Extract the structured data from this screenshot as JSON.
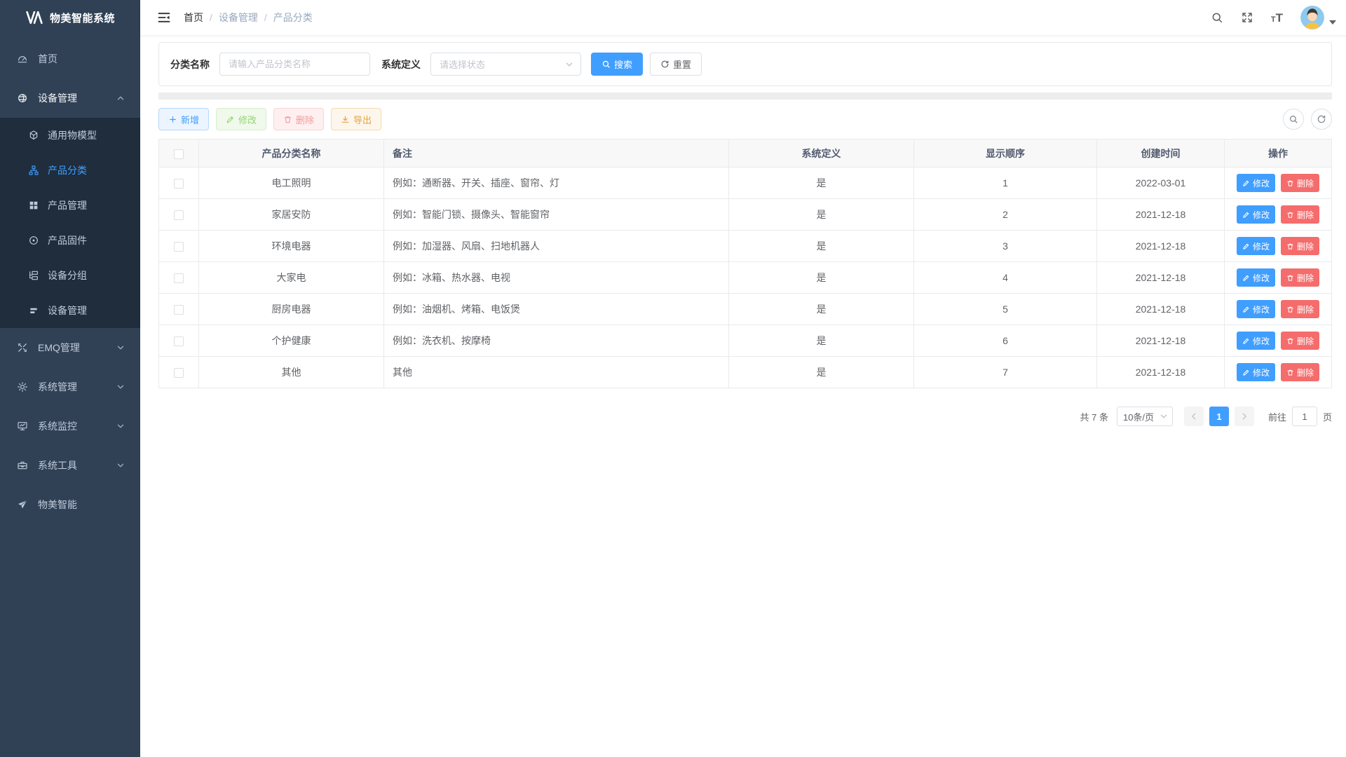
{
  "app": {
    "title": "物美智能系统"
  },
  "sidebar": {
    "items": [
      {
        "key": "home",
        "label": "首页",
        "icon": "dashboard-icon"
      },
      {
        "key": "device-management",
        "label": "设备管理",
        "icon": "device-sphere-icon",
        "expanded": true,
        "children": [
          {
            "key": "thing-model",
            "label": "通用物模型",
            "icon": "cube-icon"
          },
          {
            "key": "product-category",
            "label": "产品分类",
            "icon": "sitemap-icon",
            "active": true
          },
          {
            "key": "product-management",
            "label": "产品管理",
            "icon": "grid-icon"
          },
          {
            "key": "product-firmware",
            "label": "产品固件",
            "icon": "target-icon"
          },
          {
            "key": "device-group",
            "label": "设备分组",
            "icon": "group-icon"
          },
          {
            "key": "device-list",
            "label": "设备管理",
            "icon": "bars-icon"
          }
        ]
      },
      {
        "key": "emq-management",
        "label": "EMQ管理",
        "icon": "emq-arrows-icon",
        "collapsible": true
      },
      {
        "key": "system-management",
        "label": "系统管理",
        "icon": "gear-icon",
        "collapsible": true
      },
      {
        "key": "system-monitor",
        "label": "系统监控",
        "icon": "monitor-icon",
        "collapsible": true
      },
      {
        "key": "system-tools",
        "label": "系统工具",
        "icon": "toolbox-icon",
        "collapsible": true
      },
      {
        "key": "wumei-smart",
        "label": "物美智能",
        "icon": "paper-plane-icon"
      }
    ]
  },
  "header": {
    "breadcrumb": [
      "首页",
      "设备管理",
      "产品分类"
    ]
  },
  "search": {
    "name_label": "分类名称",
    "name_placeholder": "请输入产品分类名称",
    "sys_label": "系统定义",
    "sys_placeholder": "请选择状态",
    "search_btn": "搜索",
    "reset_btn": "重置"
  },
  "toolbar": {
    "add": "新增",
    "edit": "修改",
    "delete": "删除",
    "export": "导出"
  },
  "table": {
    "headers": [
      "产品分类名称",
      "备注",
      "系统定义",
      "显示顺序",
      "创建时间",
      "操作"
    ],
    "row_edit": "修改",
    "row_delete": "删除",
    "rows": [
      {
        "name": "电工照明",
        "remark": "例如：通断器、开关、插座、窗帘、灯",
        "system": "是",
        "order": "1",
        "created": "2022-03-01"
      },
      {
        "name": "家居安防",
        "remark": "例如：智能门锁、摄像头、智能窗帘",
        "system": "是",
        "order": "2",
        "created": "2021-12-18"
      },
      {
        "name": "环境电器",
        "remark": "例如：加湿器、风扇、扫地机器人",
        "system": "是",
        "order": "3",
        "created": "2021-12-18"
      },
      {
        "name": "大家电",
        "remark": "例如：冰箱、热水器、电视",
        "system": "是",
        "order": "4",
        "created": "2021-12-18"
      },
      {
        "name": "厨房电器",
        "remark": "例如：油烟机、烤箱、电饭煲",
        "system": "是",
        "order": "5",
        "created": "2021-12-18"
      },
      {
        "name": "个护健康",
        "remark": "例如：洗衣机、按摩椅",
        "system": "是",
        "order": "6",
        "created": "2021-12-18"
      },
      {
        "name": "其他",
        "remark": "其他",
        "system": "是",
        "order": "7",
        "created": "2021-12-18"
      }
    ]
  },
  "pagination": {
    "total": "共 7 条",
    "page_size": "10条/页",
    "current": "1",
    "goto_label": "前往",
    "goto_value": "1",
    "page_label": "页"
  },
  "colors": {
    "accent": "#409eff",
    "success": "#67c23a",
    "danger": "#f56c6c",
    "warning": "#e6a23c",
    "sidebar_bg": "#304156",
    "submenu_bg": "#1f2d3d",
    "sidebar_text": "#bfcbd9"
  }
}
